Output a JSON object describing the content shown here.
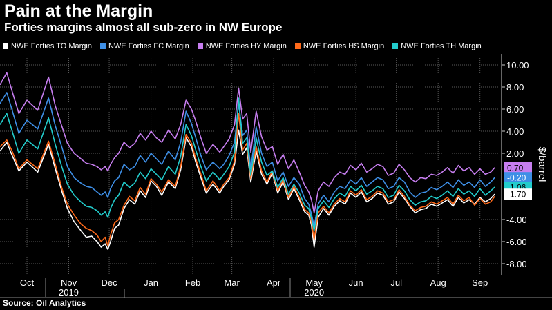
{
  "header": {
    "title": "Pain at the Margin",
    "subtitle": "Forties margins almost all sub-zero in NW Europe"
  },
  "source": "Source: Oil Analytics",
  "chart_data": {
    "type": "line",
    "ylabel": "$/barrel",
    "ylim": [
      -9,
      11
    ],
    "yticks": [
      10,
      8,
      6,
      4,
      2,
      -4,
      -6,
      -8
    ],
    "ytick_labels": [
      "10.00",
      "8.00",
      "6.00",
      "4.00",
      "2.00",
      "-4.00",
      "-6.00",
      "-8.00"
    ],
    "xlim": [
      0,
      370
    ],
    "month_ticks": [
      {
        "label": "Oct",
        "x": 20
      },
      {
        "label": "Nov",
        "x": 51
      },
      {
        "label": "Dec",
        "x": 81
      },
      {
        "label": "Jan",
        "x": 112
      },
      {
        "label": "Feb",
        "x": 143
      },
      {
        "label": "Mar",
        "x": 172
      },
      {
        "label": "Apr",
        "x": 203
      },
      {
        "label": "May",
        "x": 233
      },
      {
        "label": "Jun",
        "x": 264
      },
      {
        "label": "Jul",
        "x": 294
      },
      {
        "label": "Aug",
        "x": 325
      },
      {
        "label": "Sep",
        "x": 356
      }
    ],
    "year_labels": [
      {
        "label": "2019",
        "x": 51
      },
      {
        "label": "2020",
        "x": 233
      }
    ],
    "x": [
      0,
      5,
      9,
      14,
      20,
      28,
      36,
      41,
      46,
      50,
      55,
      60,
      64,
      68,
      72,
      75,
      78,
      80,
      82,
      85,
      88,
      92,
      96,
      100,
      104,
      108,
      112,
      116,
      120,
      125,
      130,
      134,
      138,
      142,
      145,
      149,
      153,
      158,
      163,
      166,
      170,
      174,
      177,
      180,
      183,
      186,
      190,
      194,
      198,
      202,
      206,
      210,
      214,
      218,
      222,
      226,
      229,
      231,
      233,
      236,
      240,
      244,
      248,
      252,
      256,
      260,
      264,
      268,
      272,
      276,
      280,
      284,
      288,
      292,
      296,
      300,
      304,
      308,
      312,
      316,
      320,
      324,
      328,
      332,
      336,
      340,
      344,
      348,
      352,
      356,
      360,
      364,
      367
    ],
    "series": [
      {
        "name": "NWE Forties TO Margin",
        "color": "#ffffff",
        "last_value": -1.7,
        "last_label": "-1.70",
        "label_text_color": "#000000",
        "values": [
          2.2,
          3.0,
          1.8,
          0.4,
          1.2,
          0.3,
          2.8,
          0.6,
          -1.5,
          -3.0,
          -4.2,
          -5.0,
          -5.6,
          -5.5,
          -6.0,
          -6.5,
          -6.2,
          -6.7,
          -6.0,
          -4.8,
          -4.5,
          -3.0,
          -2.2,
          -2.6,
          -1.4,
          -2.0,
          -0.5,
          -1.0,
          -1.8,
          -0.6,
          -1.2,
          0.5,
          3.4,
          2.6,
          1.3,
          -0.2,
          -1.6,
          -0.8,
          -1.6,
          -1.0,
          -0.4,
          1.0,
          4.1,
          1.9,
          2.5,
          -0.6,
          2.2,
          0.1,
          -0.8,
          0.2,
          -1.6,
          -0.6,
          -2.2,
          -1.2,
          -2.2,
          -3.3,
          -3.6,
          -4.5,
          -6.5,
          -3.8,
          -3.0,
          -3.6,
          -2.8,
          -2.3,
          -2.6,
          -1.6,
          -2.0,
          -1.5,
          -2.4,
          -2.1,
          -1.6,
          -1.8,
          -2.6,
          -2.4,
          -1.5,
          -2.1,
          -2.8,
          -3.4,
          -3.1,
          -3.0,
          -2.6,
          -2.8,
          -2.5,
          -2.2,
          -2.8,
          -2.0,
          -2.5,
          -2.2,
          -2.6,
          -2.0,
          -2.4,
          -2.1,
          -1.7
        ]
      },
      {
        "name": "NWE Forties FC Margin",
        "color": "#3e8fe6",
        "last_value": -0.2,
        "last_label": "-0.20",
        "label_text_color": "#ffffff",
        "values": [
          6.5,
          7.5,
          5.9,
          3.8,
          5.0,
          4.2,
          7.0,
          4.5,
          2.5,
          0.8,
          -0.2,
          -0.7,
          -1.0,
          -1.1,
          -1.5,
          -1.8,
          -1.5,
          -2.0,
          -1.2,
          -0.5,
          -0.2,
          1.0,
          0.5,
          0.8,
          1.8,
          1.2,
          2.0,
          1.5,
          1.0,
          2.2,
          1.4,
          3.0,
          5.8,
          4.7,
          3.5,
          1.8,
          0.5,
          1.2,
          0.6,
          1.0,
          1.8,
          3.0,
          6.5,
          3.6,
          4.1,
          0.6,
          4.4,
          2.0,
          0.8,
          1.2,
          -0.5,
          0.3,
          -1.0,
          -0.2,
          -0.8,
          -2.1,
          -2.6,
          -3.5,
          -4.6,
          -2.6,
          -1.8,
          -2.4,
          -1.5,
          -1.0,
          -1.2,
          -0.4,
          -0.8,
          -0.2,
          -1.0,
          -0.6,
          -0.2,
          -0.4,
          -1.2,
          -1.0,
          -0.2,
          -0.6,
          -1.5,
          -2.0,
          -1.6,
          -1.5,
          -1.1,
          -1.3,
          -1.0,
          -0.6,
          -1.1,
          -0.4,
          -0.9,
          -0.6,
          -1.1,
          -0.4,
          -1.0,
          -0.6,
          -0.2
        ]
      },
      {
        "name": "NWE Forties HY Margin",
        "color": "#c77ef0",
        "last_value": 0.7,
        "last_label": "0.70",
        "label_text_color": "#000000",
        "values": [
          8.2,
          9.3,
          7.6,
          5.6,
          6.8,
          5.9,
          8.9,
          6.3,
          4.4,
          2.9,
          2.0,
          1.5,
          1.1,
          1.0,
          0.8,
          0.5,
          0.8,
          0.4,
          1.0,
          1.6,
          2.0,
          3.0,
          2.5,
          2.9,
          3.8,
          3.2,
          4.0,
          3.4,
          3.0,
          4.1,
          3.3,
          4.6,
          6.8,
          6.0,
          5.0,
          3.4,
          2.0,
          2.8,
          2.1,
          2.6,
          3.3,
          4.6,
          7.9,
          5.1,
          5.6,
          2.1,
          5.8,
          3.5,
          2.3,
          2.6,
          1.0,
          1.9,
          0.6,
          1.4,
          0.3,
          -0.9,
          -1.5,
          -2.2,
          -3.4,
          -1.4,
          -0.6,
          -1.0,
          -0.2,
          0.3,
          0.1,
          0.9,
          0.5,
          1.1,
          0.3,
          0.6,
          1.0,
          0.8,
          0.0,
          0.2,
          1.0,
          0.5,
          -0.2,
          -0.6,
          -0.2,
          -0.3,
          0.1,
          0.0,
          0.3,
          0.7,
          0.2,
          0.9,
          0.4,
          0.7,
          0.1,
          0.6,
          0.1,
          0.3,
          0.7
        ]
      },
      {
        "name": "NWE Forties HS Margin",
        "color": "#ff6a1a",
        "last_value": -1.9,
        "last_label": "",
        "label_text_color": "#000000",
        "values": [
          2.6,
          3.2,
          2.2,
          0.6,
          1.4,
          0.6,
          3.1,
          1.0,
          -1.2,
          -2.6,
          -3.6,
          -4.4,
          -4.8,
          -5.0,
          -5.4,
          -6.0,
          -5.6,
          -6.4,
          -5.4,
          -4.3,
          -4.0,
          -2.7,
          -1.9,
          -2.3,
          -1.1,
          -1.7,
          -0.3,
          -0.8,
          -1.5,
          -0.4,
          -1.0,
          0.8,
          3.7,
          2.9,
          1.6,
          0.1,
          -1.4,
          -0.5,
          -1.4,
          -0.8,
          -0.2,
          1.3,
          5.6,
          2.3,
          2.9,
          -0.3,
          2.6,
          0.4,
          -0.6,
          0.4,
          -1.4,
          -0.4,
          -2.0,
          -1.0,
          -2.0,
          -3.1,
          -3.4,
          -4.2,
          -5.8,
          -3.4,
          -2.8,
          -3.4,
          -2.6,
          -2.1,
          -2.4,
          -1.4,
          -1.8,
          -1.3,
          -2.2,
          -1.9,
          -1.4,
          -1.6,
          -2.4,
          -2.2,
          -1.3,
          -1.9,
          -2.7,
          -3.2,
          -2.9,
          -2.8,
          -2.4,
          -2.6,
          -2.3,
          -2.0,
          -2.6,
          -1.8,
          -2.3,
          -2.0,
          -2.7,
          -2.1,
          -2.6,
          -2.4,
          -1.9
        ]
      },
      {
        "name": "NWE Forties TH Margin",
        "color": "#22cccc",
        "last_value": -1.06,
        "last_label": "-1.06",
        "label_text_color": "#000000",
        "values": [
          4.6,
          5.6,
          4.0,
          2.0,
          3.2,
          2.4,
          5.2,
          2.8,
          0.7,
          -0.8,
          -1.8,
          -2.4,
          -2.8,
          -2.9,
          -3.2,
          -3.6,
          -3.3,
          -3.8,
          -3.0,
          -2.2,
          -1.8,
          -0.6,
          -1.1,
          -0.7,
          0.3,
          -0.3,
          0.6,
          0.1,
          -0.4,
          0.8,
          0.1,
          1.7,
          4.6,
          3.6,
          2.4,
          0.8,
          -0.5,
          0.3,
          -0.4,
          0.1,
          0.8,
          2.1,
          7.0,
          2.9,
          3.4,
          0.0,
          3.4,
          1.2,
          0.0,
          0.4,
          -1.1,
          -0.2,
          -1.7,
          -0.8,
          -1.6,
          -2.7,
          -3.0,
          -3.9,
          -5.0,
          -3.0,
          -2.3,
          -2.9,
          -2.1,
          -1.6,
          -1.9,
          -1.0,
          -1.4,
          -0.9,
          -1.7,
          -1.4,
          -1.0,
          -1.2,
          -2.0,
          -1.8,
          -0.9,
          -1.4,
          -2.2,
          -2.7,
          -2.4,
          -2.3,
          -1.9,
          -2.1,
          -1.8,
          -1.4,
          -1.9,
          -1.2,
          -1.7,
          -1.4,
          -1.9,
          -1.2,
          -1.8,
          -1.4,
          -1.06
        ]
      }
    ]
  }
}
